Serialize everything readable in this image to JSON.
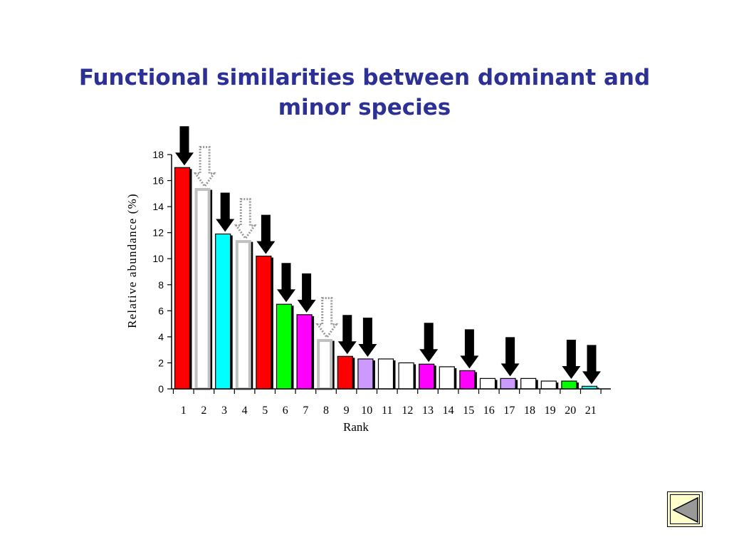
{
  "slide": {
    "title": "Functional similarities between dominant and minor species"
  },
  "colors": {
    "red": "#ff0000",
    "cyan": "#00ffff",
    "green": "#00ff00",
    "magenta": "#ff00ff",
    "lavender": "#cc99ff",
    "white": "#ffffff",
    "gray_outline": "#c0c0c0",
    "arrow_solid": "#000000",
    "arrow_dotted": "#999999",
    "title": "#2d3196",
    "nav_fill": "#ffffcc",
    "nav_arrow": "#999999"
  },
  "chart_data": {
    "type": "bar",
    "title": "",
    "xlabel": "Rank",
    "ylabel": "Relative abundance (%)",
    "ylim": [
      0,
      18
    ],
    "yticks": [
      0,
      2,
      4,
      6,
      8,
      10,
      12,
      14,
      16,
      18
    ],
    "grid": false,
    "categories": [
      "1",
      "2",
      "3",
      "4",
      "5",
      "6",
      "7",
      "8",
      "9",
      "10",
      "11",
      "12",
      "13",
      "14",
      "15",
      "16",
      "17",
      "18",
      "19",
      "20",
      "21"
    ],
    "values": [
      17.0,
      15.4,
      11.9,
      11.4,
      10.2,
      6.5,
      5.7,
      3.8,
      2.5,
      2.3,
      2.3,
      2.0,
      1.9,
      1.7,
      1.4,
      0.8,
      0.8,
      0.8,
      0.6,
      0.6,
      0.2
    ],
    "bar_colors": [
      "red",
      "white",
      "cyan",
      "white",
      "red",
      "green",
      "magenta",
      "white",
      "red",
      "lavender",
      "white",
      "white",
      "magenta",
      "white",
      "magenta",
      "white",
      "lavender",
      "white",
      "white",
      "green",
      "cyan"
    ],
    "bar_outline": [
      "black",
      "gray",
      "black",
      "gray",
      "black",
      "black",
      "black",
      "gray",
      "black",
      "black",
      "black",
      "black",
      "black",
      "black",
      "black",
      "black",
      "black",
      "black",
      "black",
      "black",
      "black"
    ],
    "arrow_markers": [
      "solid",
      "dotted",
      "solid",
      "dotted",
      "solid",
      "solid",
      "solid",
      "dotted",
      "solid",
      "solid",
      "none",
      "none",
      "solid",
      "none",
      "solid",
      "none",
      "solid",
      "none",
      "none",
      "solid",
      "solid"
    ]
  },
  "nav": {
    "back_icon": "back-triangle-icon"
  }
}
